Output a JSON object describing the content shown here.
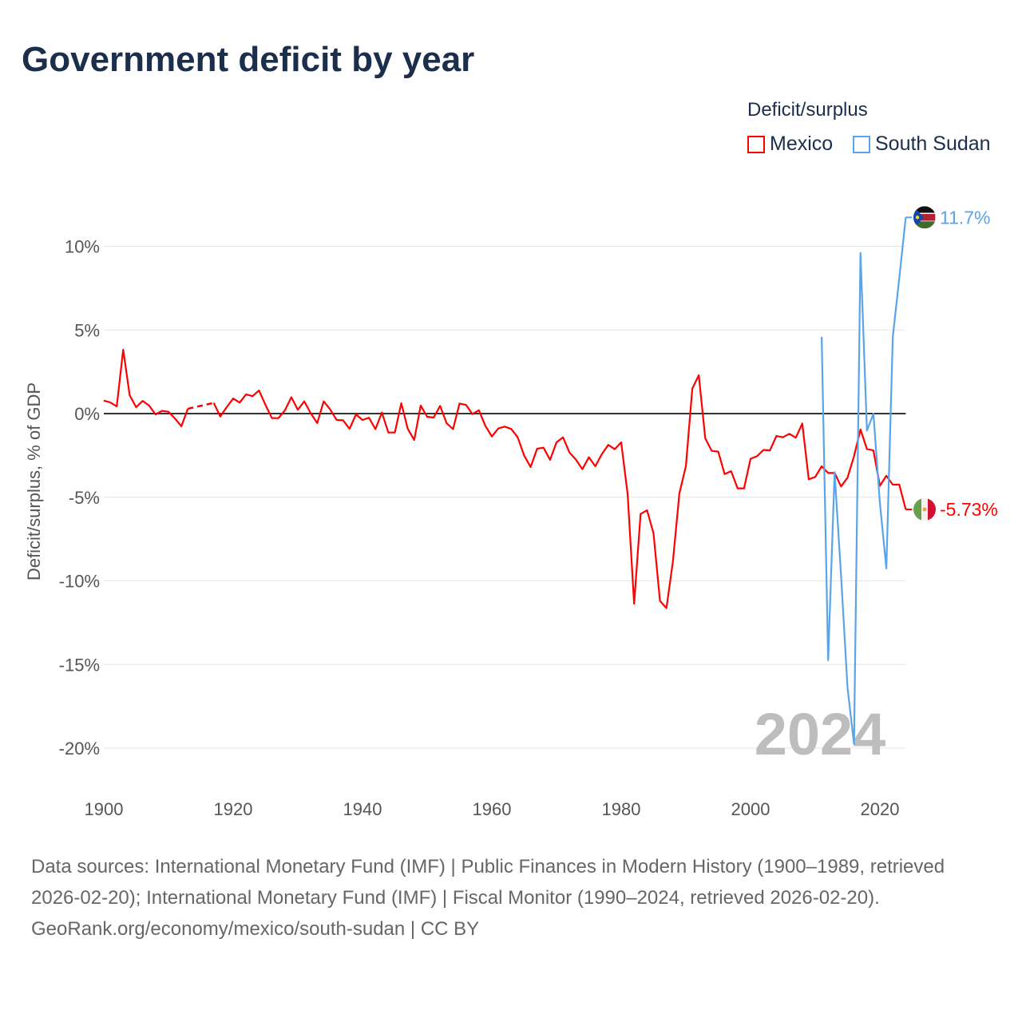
{
  "title": "Government deficit by year",
  "legend": {
    "title": "Deficit/surplus",
    "items": [
      {
        "label": "Mexico",
        "color": "#ff0000"
      },
      {
        "label": "South Sudan",
        "color": "#5aa4ea"
      }
    ]
  },
  "watermark_year": "2024",
  "footer": {
    "sources": "Data sources: International Monetary Fund (IMF) | Public Finances in Modern History (1900–1989, retrieved 2026-02-20); International Monetary Fund (IMF) | Fiscal Monitor (1990–2024, retrieved 2026-02-20).",
    "credit": "GeoRank.org/economy/mexico/south-sudan | CC BY"
  },
  "chart_data": {
    "type": "line",
    "title": "Government deficit by year",
    "xlabel": "",
    "ylabel": "Deficit/surplus, % of GDP",
    "xlim": [
      1900,
      2024
    ],
    "ylim": [
      -21,
      12
    ],
    "x_ticks": [
      1900,
      1920,
      1940,
      1960,
      1980,
      2000,
      2020
    ],
    "x_tick_labels": [
      "1900",
      "1920",
      "1940",
      "1960",
      "1980",
      "2000",
      "2020"
    ],
    "y_ticks": [
      10,
      5,
      0,
      -5,
      -10,
      -15,
      -20
    ],
    "y_tick_labels": [
      "10%",
      "5%",
      "0%",
      "-5%",
      "-10%",
      "-15%",
      "-20%"
    ],
    "grid": true,
    "legend_position": "top-right",
    "series": [
      {
        "name": "Mexico",
        "color": "#ff0000",
        "end_label": "-5.73%",
        "start_year": 1900,
        "values": [
          0.78,
          0.67,
          0.43,
          3.82,
          1.1,
          0.38,
          0.76,
          0.48,
          -0.05,
          0.16,
          0.11,
          -0.29,
          -0.76,
          0.29,
          null,
          null,
          null,
          0.64,
          -0.17,
          0.38,
          0.9,
          0.66,
          1.15,
          1.04,
          1.38,
          0.52,
          -0.27,
          -0.27,
          0.19,
          0.98,
          0.23,
          0.73,
          0.02,
          -0.57,
          0.73,
          0.25,
          -0.38,
          -0.4,
          -0.91,
          -0.05,
          -0.38,
          -0.25,
          -0.93,
          0.06,
          -1.13,
          -1.13,
          0.62,
          -0.91,
          -1.58,
          0.48,
          -0.19,
          -0.24,
          0.46,
          -0.57,
          -0.93,
          0.6,
          0.52,
          -0.03,
          0.2,
          -0.73,
          -1.37,
          -0.89,
          -0.78,
          -0.92,
          -1.42,
          -2.51,
          -3.2,
          -2.1,
          -2.04,
          -2.77,
          -1.72,
          -1.42,
          -2.32,
          -2.75,
          -3.32,
          -2.61,
          -3.15,
          -2.43,
          -1.87,
          -2.13,
          -1.72,
          -4.82,
          -11.36,
          -6.0,
          -5.78,
          -7.16,
          -11.2,
          -11.63,
          -8.83,
          -4.77,
          -3.15,
          1.5,
          2.29,
          -1.48,
          -2.23,
          -2.27,
          -3.62,
          -3.44,
          -4.47,
          -4.47,
          -2.7,
          -2.55,
          -2.17,
          -2.2,
          -1.34,
          -1.42,
          -1.21,
          -1.44,
          -0.59,
          -3.93,
          -3.79,
          -3.15,
          -3.55,
          -3.55,
          -4.36,
          -3.83,
          -2.55,
          -0.95,
          -2.12,
          -2.2,
          -4.32,
          -3.72,
          -4.25,
          -4.25,
          -5.73
        ]
      },
      {
        "name": "South Sudan",
        "color": "#5aa4ea",
        "end_label": "11.7%",
        "start_year": 2011,
        "values": [
          4.59,
          -14.75,
          -3.51,
          -9.7,
          -16.4,
          -19.75,
          9.6,
          -1.02,
          0.0,
          -5.32,
          -9.26,
          4.59,
          8.1,
          11.73
        ]
      }
    ]
  }
}
